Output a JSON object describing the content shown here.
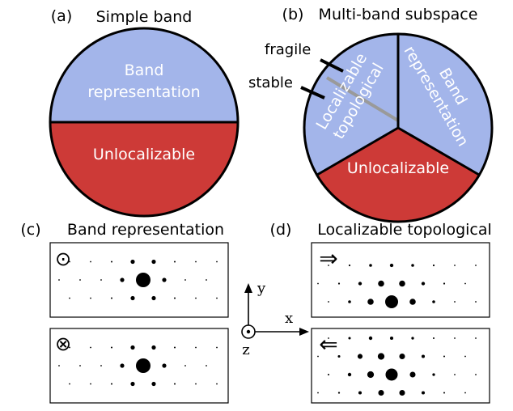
{
  "panels": {
    "a": {
      "letter": "(a)",
      "title": "Simple band",
      "top_region": [
        "Band",
        "representation"
      ],
      "bottom_region": "Unlocalizable"
    },
    "b": {
      "letter": "(b)",
      "title": "Multi-band subspace",
      "left_region": [
        "Localizable",
        "topological"
      ],
      "right_region": [
        "Band",
        "representation"
      ],
      "bottom_region": "Unlocalizable",
      "callouts": [
        "fragile",
        "stable"
      ]
    },
    "c": {
      "letter": "(c)",
      "title": "Band representation",
      "boxes": [
        {
          "symbol": "⊙",
          "symbol_name": "circle-dot-icon"
        },
        {
          "symbol": "⊗",
          "symbol_name": "circle-times-icon"
        }
      ]
    },
    "d": {
      "letter": "(d)",
      "title": "Localizable topological",
      "boxes": [
        {
          "symbol": "⇒",
          "symbol_name": "arrow-right-icon"
        },
        {
          "symbol": "⇐",
          "symbol_name": "arrow-left-icon"
        }
      ]
    }
  },
  "axes": {
    "x": "x",
    "y": "y",
    "z": "z"
  },
  "colors": {
    "band_blue": "#a3b5ea",
    "unlocalizable_red": "#cd3a37",
    "stable_line_gray": "#9a9a9a",
    "outline": "#000000"
  }
}
